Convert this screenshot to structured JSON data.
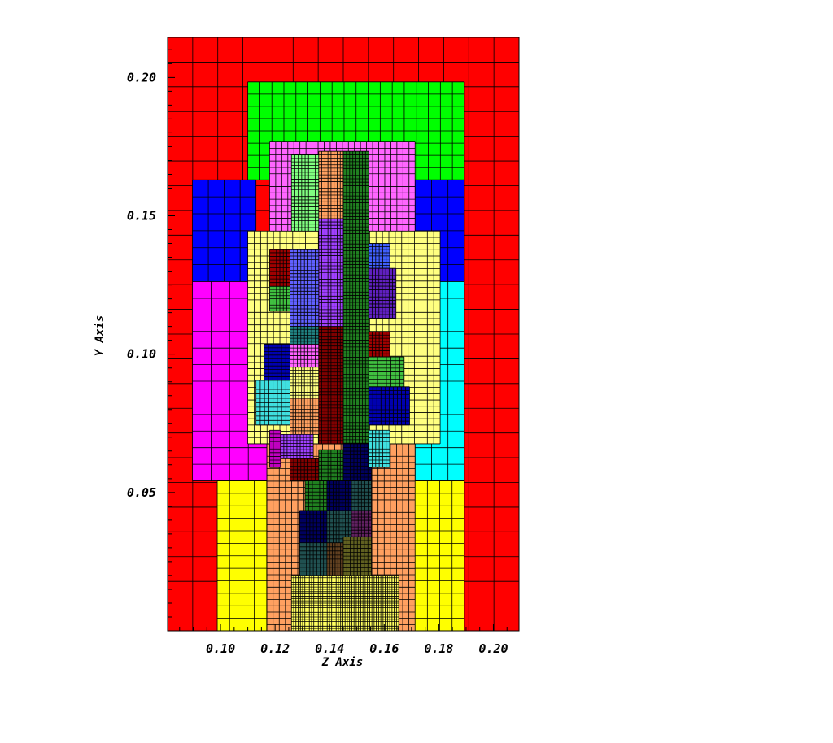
{
  "chart_data": {
    "type": "heatmap",
    "xlabel": "Z Axis",
    "ylabel": "Y Axis",
    "xlim": [
      0.0806,
      0.2094
    ],
    "ylim": [
      0.0,
      0.2145
    ],
    "x_ticks": [
      "0.10",
      "0.12",
      "0.14",
      "0.16",
      "0.18",
      "0.20"
    ],
    "x_tick_values": [
      0.1,
      0.12,
      0.14,
      0.16,
      0.18,
      0.2
    ],
    "y_ticks": [
      "0.05",
      "0.10",
      "0.15",
      "0.20"
    ],
    "y_tick_values": [
      0.05,
      0.1,
      0.15,
      0.2
    ],
    "grid": false,
    "blocks": [
      {
        "name": "block-red-domain",
        "color": "#ff0000",
        "z": [
          0.0806,
          0.2094
        ],
        "y": [
          0.0,
          0.2145
        ],
        "cells": [
          14,
          24
        ]
      },
      {
        "name": "block-green-top",
        "color": "#00ff00",
        "z": [
          0.11,
          0.1894
        ],
        "y": [
          0.163,
          0.1984
        ],
        "cells": [
          18,
          8
        ]
      },
      {
        "name": "block-blue-left",
        "color": "#0000ff",
        "z": [
          0.0897,
          0.113
        ],
        "y": [
          0.1262,
          0.163
        ],
        "cells": [
          4,
          6
        ]
      },
      {
        "name": "block-blue-right",
        "color": "#0000ff",
        "z": [
          0.1713,
          0.1894
        ],
        "y": [
          0.1262,
          0.163
        ],
        "cells": [
          3,
          6
        ]
      },
      {
        "name": "block-magenta-left",
        "color": "#ff00ff",
        "z": [
          0.0897,
          0.117
        ],
        "y": [
          0.0542,
          0.1262
        ],
        "cells": [
          4,
          12
        ]
      },
      {
        "name": "block-cyan-right",
        "color": "#00ffff",
        "z": [
          0.1713,
          0.1894
        ],
        "y": [
          0.0542,
          0.1262
        ],
        "cells": [
          3,
          12
        ]
      },
      {
        "name": "block-cyan-bottom-right",
        "color": "#00ffff",
        "z": [
          0.1533,
          0.1713
        ],
        "y": [
          0.0542,
          0.0676
        ],
        "cells": [
          6,
          3
        ]
      },
      {
        "name": "block-yellow-bottom",
        "color": "#ffff00",
        "z": [
          0.0988,
          0.1894
        ],
        "y": [
          0.0,
          0.0542
        ],
        "cells": [
          20,
          12
        ]
      },
      {
        "name": "block-orange-bottom",
        "color": "#ffa060",
        "z": [
          0.117,
          0.1713
        ],
        "y": [
          0.0,
          0.0676
        ],
        "cells": [
          24,
          30
        ]
      },
      {
        "name": "block-lightyellow-mid",
        "color": "#ffff80",
        "z": [
          0.11,
          0.1805
        ],
        "y": [
          0.0676,
          0.1445
        ],
        "cells": [
          30,
          34
        ]
      },
      {
        "name": "block-pink-upper",
        "color": "#ff66ff",
        "z": [
          0.118,
          0.1713
        ],
        "y": [
          0.1445,
          0.1767
        ],
        "cells": [
          24,
          14
        ]
      },
      {
        "name": "block-lightgreen-top",
        "color": "#80ff80",
        "z": [
          0.126,
          0.136
        ],
        "y": [
          0.1445,
          0.172
        ],
        "cells": [
          8,
          22
        ]
      },
      {
        "name": "block-salmon-top",
        "color": "#ffa060",
        "z": [
          0.136,
          0.145
        ],
        "y": [
          0.149,
          0.1733
        ],
        "cells": [
          8,
          20
        ]
      },
      {
        "name": "block-darkgreen-column",
        "color": "#208020",
        "z": [
          0.145,
          0.1543
        ],
        "y": [
          0.0542,
          0.1733
        ],
        "cells": [
          8,
          96
        ]
      },
      {
        "name": "block-purple-upper",
        "color": "#a040ff",
        "z": [
          0.136,
          0.145
        ],
        "y": [
          0.11,
          0.149
        ],
        "cells": [
          8,
          32
        ]
      },
      {
        "name": "block-steelblue-upper",
        "color": "#6060ff",
        "z": [
          0.1255,
          0.136
        ],
        "y": [
          0.11,
          0.138
        ],
        "cells": [
          8,
          22
        ]
      },
      {
        "name": "block-darkred-small-a",
        "color": "#a00000",
        "z": [
          0.118,
          0.1255
        ],
        "y": [
          0.1245,
          0.138
        ],
        "cells": [
          6,
          10
        ]
      },
      {
        "name": "block-green-small-a",
        "color": "#40c040",
        "z": [
          0.118,
          0.1255
        ],
        "y": [
          0.1155,
          0.1245
        ],
        "cells": [
          6,
          8
        ]
      },
      {
        "name": "block-teal-small",
        "color": "#208080",
        "z": [
          0.1255,
          0.136
        ],
        "y": [
          0.1036,
          0.11
        ],
        "cells": [
          8,
          6
        ]
      },
      {
        "name": "block-darkblue-left",
        "color": "#0000b0",
        "z": [
          0.116,
          0.1255
        ],
        "y": [
          0.0905,
          0.1036
        ],
        "cells": [
          6,
          10
        ]
      },
      {
        "name": "block-orchid-small",
        "color": "#ff60ff",
        "z": [
          0.1255,
          0.136
        ],
        "y": [
          0.0953,
          0.1036
        ],
        "cells": [
          8,
          6
        ]
      },
      {
        "name": "block-cyan-left-small",
        "color": "#40e0e0",
        "z": [
          0.113,
          0.1255
        ],
        "y": [
          0.0744,
          0.0905
        ],
        "cells": [
          8,
          10
        ]
      },
      {
        "name": "block-lightyellow-inner",
        "color": "#ffff80",
        "z": [
          0.1255,
          0.136
        ],
        "y": [
          0.084,
          0.0953
        ],
        "cells": [
          10,
          10
        ]
      },
      {
        "name": "block-salmon-inner",
        "color": "#ffa060",
        "z": [
          0.1255,
          0.136
        ],
        "y": [
          0.071,
          0.084
        ],
        "cells": [
          10,
          10
        ]
      },
      {
        "name": "block-maroon-column",
        "color": "#800000",
        "z": [
          0.136,
          0.145
        ],
        "y": [
          0.0676,
          0.11
        ],
        "cells": [
          8,
          36
        ]
      },
      {
        "name": "block-blue-small-b",
        "color": "#4060ff",
        "z": [
          0.1543,
          0.162
        ],
        "y": [
          0.131,
          0.14
        ],
        "cells": [
          6,
          8
        ]
      },
      {
        "name": "block-indigo-small",
        "color": "#6020c0",
        "z": [
          0.1543,
          0.1643
        ],
        "y": [
          0.113,
          0.131
        ],
        "cells": [
          8,
          14
        ]
      },
      {
        "name": "block-darkred-small-b",
        "color": "#a00000",
        "z": [
          0.1543,
          0.162
        ],
        "y": [
          0.099,
          0.108
        ],
        "cells": [
          6,
          8
        ]
      },
      {
        "name": "block-green-small-b",
        "color": "#40c040",
        "z": [
          0.1543,
          0.1673
        ],
        "y": [
          0.0882,
          0.099
        ],
        "cells": [
          8,
          8
        ]
      },
      {
        "name": "block-darkblue-right",
        "color": "#0000b0",
        "z": [
          0.1543,
          0.1693
        ],
        "y": [
          0.0744,
          0.0882
        ],
        "cells": [
          10,
          10
        ]
      },
      {
        "name": "block-magenta-small",
        "color": "#c000c0",
        "z": [
          0.118,
          0.122
        ],
        "y": [
          0.059,
          0.0725
        ],
        "cells": [
          3,
          10
        ]
      },
      {
        "name": "block-purple-small",
        "color": "#a040ff",
        "z": [
          0.122,
          0.134
        ],
        "y": [
          0.0622,
          0.071
        ],
        "cells": [
          10,
          8
        ]
      },
      {
        "name": "block-darkred-small-c",
        "color": "#800000",
        "z": [
          0.1255,
          0.136
        ],
        "y": [
          0.0542,
          0.0622
        ],
        "cells": [
          8,
          6
        ]
      },
      {
        "name": "block-green-small-c",
        "color": "#208020",
        "z": [
          0.136,
          0.145
        ],
        "y": [
          0.0542,
          0.0655
        ],
        "cells": [
          8,
          8
        ]
      },
      {
        "name": "block-navy-small-a",
        "color": "#000060",
        "z": [
          0.145,
          0.1553
        ],
        "y": [
          0.0542,
          0.0676
        ],
        "cells": [
          8,
          10
        ]
      },
      {
        "name": "block-cyan-small-c",
        "color": "#40e0e0",
        "z": [
          0.1543,
          0.162
        ],
        "y": [
          0.059,
          0.0725
        ],
        "cells": [
          6,
          10
        ]
      },
      {
        "name": "block-green-small-d",
        "color": "#208020",
        "z": [
          0.131,
          0.139
        ],
        "y": [
          0.0435,
          0.0542
        ],
        "cells": [
          6,
          8
        ]
      },
      {
        "name": "block-navy-small-b",
        "color": "#000060",
        "z": [
          0.139,
          0.148
        ],
        "y": [
          0.0435,
          0.0542
        ],
        "cells": [
          8,
          8
        ]
      },
      {
        "name": "block-teal-small-b",
        "color": "#205050",
        "z": [
          0.148,
          0.1553
        ],
        "y": [
          0.0435,
          0.0542
        ],
        "cells": [
          6,
          8
        ]
      },
      {
        "name": "block-navy-small-c",
        "color": "#000060",
        "z": [
          0.129,
          0.139
        ],
        "y": [
          0.0318,
          0.0435
        ],
        "cells": [
          8,
          8
        ]
      },
      {
        "name": "block-teal-small-c",
        "color": "#205050",
        "z": [
          0.139,
          0.148
        ],
        "y": [
          0.0318,
          0.0435
        ],
        "cells": [
          8,
          8
        ]
      },
      {
        "name": "block-purple-small-d",
        "color": "#602060",
        "z": [
          0.148,
          0.1553
        ],
        "y": [
          0.034,
          0.0435
        ],
        "cells": [
          6,
          8
        ]
      },
      {
        "name": "block-teal-small-d",
        "color": "#205050",
        "z": [
          0.129,
          0.139
        ],
        "y": [
          0.02,
          0.0318
        ],
        "cells": [
          8,
          8
        ]
      },
      {
        "name": "block-brown-small",
        "color": "#604020",
        "z": [
          0.139,
          0.145
        ],
        "y": [
          0.02,
          0.0318
        ],
        "cells": [
          6,
          8
        ]
      },
      {
        "name": "block-olive-small",
        "color": "#606020",
        "z": [
          0.145,
          0.1553
        ],
        "y": [
          0.02,
          0.034
        ],
        "cells": [
          8,
          10
        ]
      },
      {
        "name": "block-yellow-bottom-fine",
        "color": "#ffff60",
        "z": [
          0.126,
          0.1653
        ],
        "y": [
          0.0,
          0.02
        ],
        "cells": [
          48,
          24
        ]
      }
    ]
  }
}
